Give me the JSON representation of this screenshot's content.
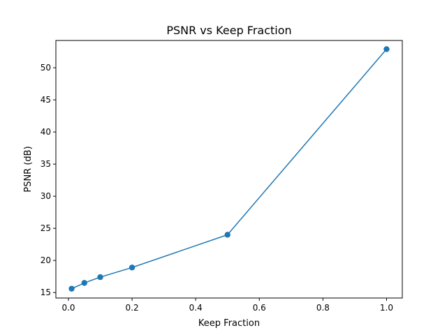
{
  "chart_data": {
    "type": "line",
    "title": "PSNR vs Keep Fraction",
    "xlabel": "Keep Fraction",
    "ylabel": "PSNR (dB)",
    "xlim": [
      -0.0395,
      1.0495
    ],
    "ylim": [
      14.15,
      54.25
    ],
    "xticks": [
      0.0,
      0.2,
      0.4,
      0.6,
      0.8,
      1.0
    ],
    "xtick_labels": [
      "0.0",
      "0.2",
      "0.4",
      "0.6",
      "0.8",
      "1.0"
    ],
    "yticks": [
      15,
      20,
      25,
      30,
      35,
      40,
      45,
      50
    ],
    "ytick_labels": [
      "15",
      "20",
      "25",
      "30",
      "35",
      "40",
      "45",
      "50"
    ],
    "grid": false,
    "series": [
      {
        "color": "#1f77b4",
        "marker": "circle",
        "x": [
          0.01,
          0.05,
          0.1,
          0.2,
          0.5,
          1.0
        ],
        "y": [
          15.6,
          16.5,
          17.4,
          18.9,
          24.0,
          52.9
        ]
      }
    ]
  }
}
